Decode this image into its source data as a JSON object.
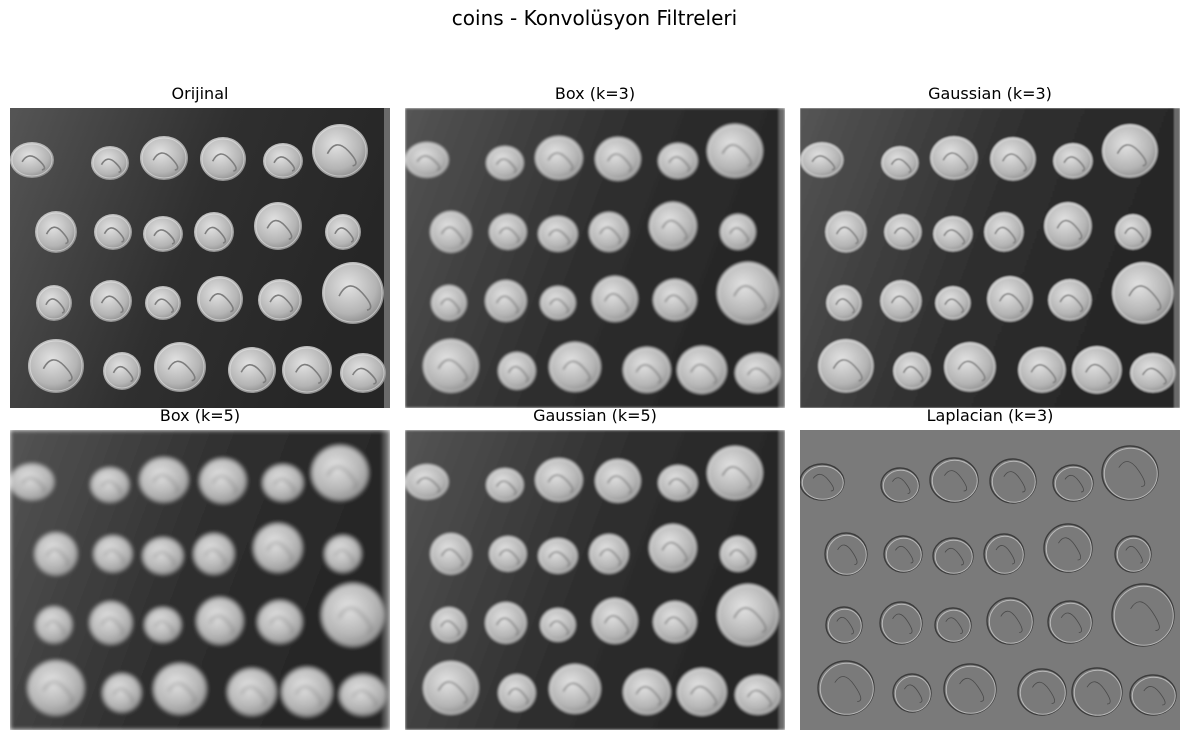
{
  "figure": {
    "suptitle": "coins - Konvolüsyon Filtreleri"
  },
  "panels": [
    {
      "title": "Orijinal",
      "filter": "original",
      "blur": 0
    },
    {
      "title": "Box (k=3)",
      "filter": "box",
      "blur": 1.2
    },
    {
      "title": "Gaussian (k=3)",
      "filter": "gaussian",
      "blur": 0.7
    },
    {
      "title": "Box (k=5)",
      "filter": "box",
      "blur": 2.4
    },
    {
      "title": "Gaussian (k=5)",
      "filter": "gaussian",
      "blur": 1.3
    },
    {
      "title": "Laplacian (k=3)",
      "filter": "laplacian",
      "blur": 0
    }
  ],
  "colors": {
    "background_dark": "#2f2f2f",
    "background_mid": "#555555",
    "coin_light": "#e2e2e2",
    "coin_mid": "#b4b4b4",
    "laplacian_gray": "#7a7a7a"
  }
}
